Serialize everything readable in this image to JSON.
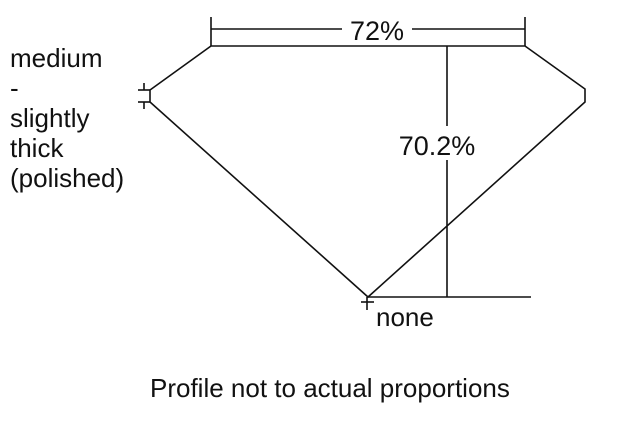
{
  "diagram": {
    "table_percentage": "72%",
    "total_depth_percentage": "70.2%",
    "girdle_label_lines": [
      "medium",
      "-",
      "slightly",
      "thick",
      "(polished)"
    ],
    "culet_label": "none",
    "caption": "Profile not to actual proportions",
    "line_color": "#111111"
  }
}
